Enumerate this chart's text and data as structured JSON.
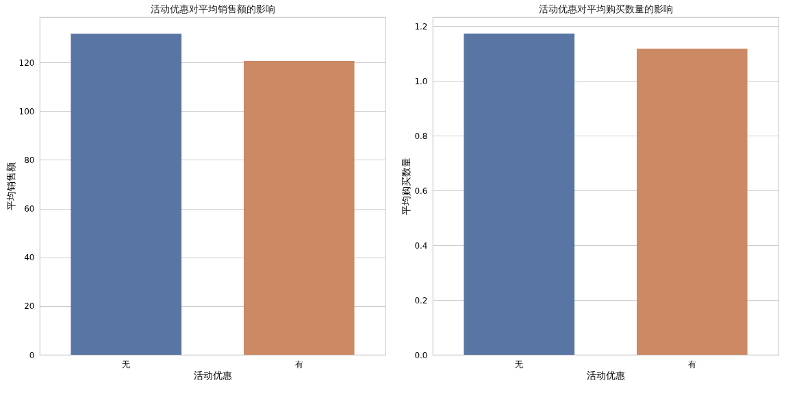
{
  "chart_data": [
    {
      "type": "bar",
      "title": "活动优惠对平均销售额的影响",
      "xlabel": "活动优惠",
      "ylabel": "平均销售额",
      "categories": [
        "无",
        "有"
      ],
      "values": [
        131.8,
        120.6
      ],
      "colors": [
        "#5975a4",
        "#cc8963"
      ],
      "ylim": [
        0,
        138.6
      ],
      "yticks": [
        0,
        20,
        40,
        60,
        80,
        100,
        120
      ],
      "grid": "y",
      "legend": false
    },
    {
      "type": "bar",
      "title": "活动优惠对平均购买数量的影响",
      "xlabel": "活动优惠",
      "ylabel": "平均购买数量",
      "categories": [
        "无",
        "有"
      ],
      "values": [
        1.173,
        1.118
      ],
      "colors": [
        "#5975a4",
        "#cc8963"
      ],
      "ylim": [
        0,
        1.233
      ],
      "yticks": [
        {
          "value": 0,
          "label": "0.0"
        },
        0.2,
        0.4,
        0.6,
        0.8,
        {
          "value": 1,
          "label": "1.0"
        },
        1.2
      ],
      "grid": "y",
      "legend": false
    }
  ]
}
